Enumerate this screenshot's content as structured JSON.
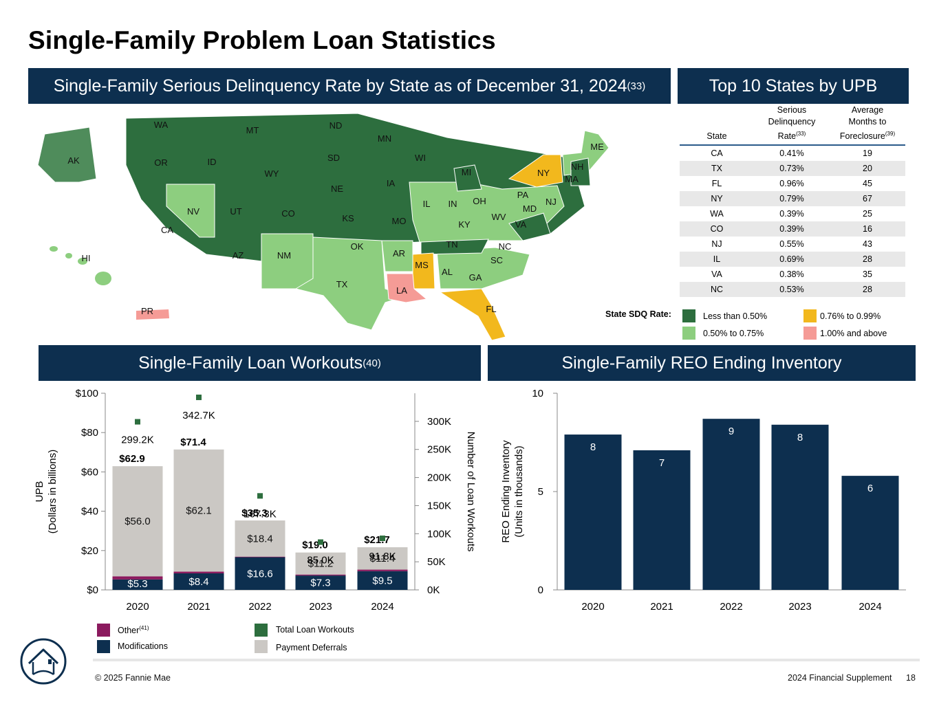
{
  "page": {
    "title": "Single-Family Problem Loan Statistics",
    "footer_left": "© 2025 Fannie Mae",
    "footer_right": "2024 Financial Supplement",
    "page_number": "18"
  },
  "map_section": {
    "banner_title": "Single-Family Serious Delinquency Rate by State as of December 31, 2024",
    "banner_sup": "(33)",
    "states": [
      "WA",
      "MT",
      "ND",
      "MN",
      "AK",
      "OR",
      "ID",
      "SD",
      "WI",
      "ME",
      "WY",
      "NY",
      "NH",
      "MA",
      "MI",
      "IA",
      "NE",
      "NV",
      "UT",
      "CO",
      "IL",
      "IN",
      "OH",
      "PA",
      "NJ",
      "MD",
      "KS",
      "MO",
      "WV",
      "CA",
      "VA",
      "KY",
      "TN",
      "NC",
      "OK",
      "AZ",
      "NM",
      "AR",
      "SC",
      "HI",
      "MS",
      "AL",
      "GA",
      "TX",
      "LA",
      "FL",
      "PR"
    ],
    "legend_title": "State SDQ Rate:",
    "legend": [
      {
        "label": "Less than 0.50%",
        "color": "#2d6e3e"
      },
      {
        "label": "0.76% to 0.99%",
        "color": "#f2b81d"
      },
      {
        "label": "0.50% to 0.75%",
        "color": "#8dce7f"
      },
      {
        "label": "1.00% and above",
        "color": "#f59b96"
      }
    ]
  },
  "top10": {
    "banner_title": "Top 10 States by UPB",
    "headers": {
      "state": "State",
      "sdq_line1": "Serious",
      "sdq_line2": "Delinquency",
      "sdq_line3": "Rate",
      "sdq_sup": "(33)",
      "months_line1": "Average",
      "months_line2": "Months to",
      "months_line3": "Foreclosure",
      "months_sup": "(39)"
    },
    "rows": [
      {
        "state": "CA",
        "rate": "0.41%",
        "months": "19"
      },
      {
        "state": "TX",
        "rate": "0.73%",
        "months": "20"
      },
      {
        "state": "FL",
        "rate": "0.96%",
        "months": "45"
      },
      {
        "state": "NY",
        "rate": "0.79%",
        "months": "67"
      },
      {
        "state": "WA",
        "rate": "0.39%",
        "months": "25"
      },
      {
        "state": "CO",
        "rate": "0.39%",
        "months": "16"
      },
      {
        "state": "NJ",
        "rate": "0.55%",
        "months": "43"
      },
      {
        "state": "IL",
        "rate": "0.69%",
        "months": "28"
      },
      {
        "state": "VA",
        "rate": "0.38%",
        "months": "35"
      },
      {
        "state": "NC",
        "rate": "0.53%",
        "months": "28"
      }
    ]
  },
  "workouts": {
    "banner_title": "Single-Family Loan Workouts",
    "banner_sup": "(40)",
    "legend": [
      {
        "label": "Other",
        "sup": "(41)",
        "color": "#8b1a5e"
      },
      {
        "label": "Total Loan Workouts",
        "sup": "",
        "color": "#2d6e3e"
      },
      {
        "label": "Modifications",
        "sup": "",
        "color": "#0d2f4f"
      },
      {
        "label": "Payment Deferrals",
        "sup": "",
        "color": "#cbc8c4"
      }
    ]
  },
  "reo": {
    "banner_title": "Single-Family REO Ending Inventory"
  },
  "chart_data": [
    {
      "type": "bar",
      "stacked": true,
      "title": "Single-Family Loan Workouts",
      "categories": [
        "2020",
        "2021",
        "2022",
        "2023",
        "2024"
      ],
      "ylabel_line1": "UPB",
      "ylabel_line2": "(Dollars in billions)",
      "y2label": "Number of Loan Workouts",
      "ylim": [
        0,
        100
      ],
      "y2lim": [
        0,
        350000
      ],
      "yticks": [
        "$0",
        "$20",
        "$40",
        "$60",
        "$80",
        "$100"
      ],
      "y2ticks": [
        "0K",
        "50K",
        "100K",
        "150K",
        "200K",
        "250K",
        "300K"
      ],
      "series": [
        {
          "name": "Modifications",
          "values": [
            5.3,
            8.4,
            16.6,
            7.3,
            9.5
          ],
          "labels": [
            "$5.3",
            "$8.4",
            "$16.6",
            "$7.3",
            "$9.5"
          ]
        },
        {
          "name": "Other",
          "values": [
            1.6,
            0.9,
            0.3,
            0.5,
            0.8
          ]
        },
        {
          "name": "Payment Deferrals",
          "values": [
            56.0,
            62.1,
            18.4,
            11.2,
            11.4
          ],
          "labels": [
            "$56.0",
            "$62.1",
            "$18.4",
            "$11.2",
            "$11.4"
          ]
        }
      ],
      "totals": [
        62.9,
        71.4,
        35.3,
        19.0,
        21.7
      ],
      "total_labels": [
        "$62.9",
        "$71.4",
        "$35.3",
        "$19.0",
        "$21.7"
      ],
      "loan_workouts": [
        299200,
        342700,
        167300,
        85000,
        91800
      ],
      "loan_workout_labels": [
        "299.2K",
        "342.7K",
        "167.3K",
        "85.0K",
        "91.8K"
      ]
    },
    {
      "type": "bar",
      "title": "Single-Family REO Ending Inventory",
      "categories": [
        "2020",
        "2021",
        "2022",
        "2023",
        "2024"
      ],
      "values": [
        7.9,
        7.1,
        8.7,
        8.4,
        5.8
      ],
      "labels": [
        "8",
        "7",
        "9",
        "8",
        "6"
      ],
      "ylabel_line1": "REO Ending Inventory",
      "ylabel_line2": "(Units in thousands)",
      "ylim": [
        0,
        10
      ],
      "yticks": [
        "0",
        "5",
        "10"
      ]
    }
  ]
}
